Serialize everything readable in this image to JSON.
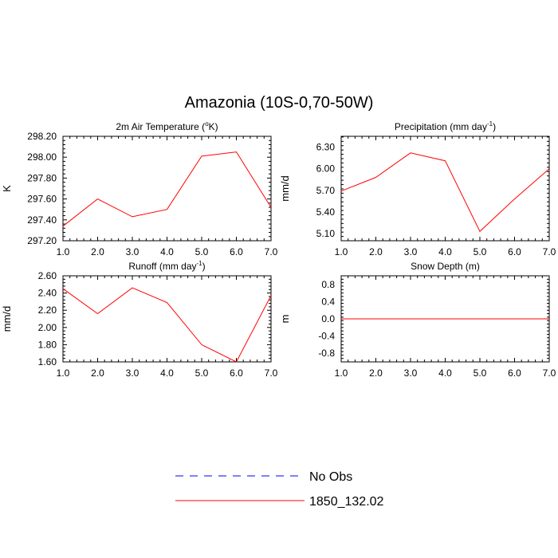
{
  "title": "Amazonia (10S-0,70-50W)",
  "colors": {
    "model": "#ff0000",
    "obs": "#0000ff",
    "axis": "#000000",
    "zero_line": "#000000"
  },
  "chart_data": [
    {
      "type": "line",
      "title": "2m Air Temperature (°K)",
      "title_parts": {
        "pre": "2m Air Temperature (",
        "sup": "o",
        "post": "K)"
      },
      "ylabel": "K",
      "x": [
        1,
        2,
        3,
        4,
        5,
        6,
        7
      ],
      "xlim": [
        1,
        7
      ],
      "ylim": [
        297.2,
        298.2
      ],
      "xticks": [
        "1.0",
        "2.0",
        "3.0",
        "4.0",
        "5.0",
        "6.0",
        "7.0"
      ],
      "yticks": [
        297.2,
        297.4,
        297.6,
        297.8,
        298.0,
        298.2
      ],
      "ytick_labels": [
        "297.20",
        "297.40",
        "297.60",
        "297.80",
        "298.00",
        "298.20"
      ],
      "series": [
        {
          "name": "1850_132.02",
          "values": [
            297.34,
            297.6,
            297.43,
            297.5,
            298.01,
            298.05,
            297.52
          ]
        }
      ]
    },
    {
      "type": "line",
      "title": "Precipitation (mm day-1)",
      "title_parts": {
        "pre": "Precipitation (mm day",
        "sup": "-1",
        "post": ")"
      },
      "ylabel": "mm/d",
      "x": [
        1,
        2,
        3,
        4,
        5,
        6,
        7
      ],
      "xlim": [
        1,
        7
      ],
      "ylim": [
        5.0,
        6.45
      ],
      "xticks": [
        "1.0",
        "2.0",
        "3.0",
        "4.0",
        "5.0",
        "6.0",
        "7.0"
      ],
      "yticks": [
        5.1,
        5.4,
        5.7,
        6.0,
        6.3
      ],
      "ytick_labels": [
        "5.10",
        "5.40",
        "5.70",
        "6.00",
        "6.30"
      ],
      "series": [
        {
          "name": "1850_132.02",
          "values": [
            5.69,
            5.88,
            6.22,
            6.11,
            5.13,
            5.58,
            6.0
          ]
        }
      ]
    },
    {
      "type": "line",
      "title": "Runoff (mm day-1)",
      "title_parts": {
        "pre": "Runoff (mm day",
        "sup": "-1",
        "post": ")"
      },
      "ylabel": "mm/d",
      "x": [
        1,
        2,
        3,
        4,
        5,
        6,
        7
      ],
      "xlim": [
        1,
        7
      ],
      "ylim": [
        1.6,
        2.6
      ],
      "xticks": [
        "1.0",
        "2.0",
        "3.0",
        "4.0",
        "5.0",
        "6.0",
        "7.0"
      ],
      "yticks": [
        1.6,
        1.8,
        2.0,
        2.2,
        2.4,
        2.6
      ],
      "ytick_labels": [
        "1.60",
        "1.80",
        "2.00",
        "2.20",
        "2.40",
        "2.60"
      ],
      "series": [
        {
          "name": "1850_132.02",
          "values": [
            2.45,
            2.16,
            2.46,
            2.29,
            1.8,
            1.6,
            2.37
          ]
        }
      ]
    },
    {
      "type": "line",
      "title": "Snow Depth (m)",
      "title_parts": {
        "pre": "Snow Depth (m)",
        "sup": "",
        "post": ""
      },
      "ylabel": "m",
      "x": [
        1,
        2,
        3,
        4,
        5,
        6,
        7
      ],
      "xlim": [
        1,
        7
      ],
      "ylim": [
        -1.0,
        1.0
      ],
      "xticks": [
        "1.0",
        "2.0",
        "3.0",
        "4.0",
        "5.0",
        "6.0",
        "7.0"
      ],
      "yticks": [
        -0.8,
        -0.4,
        0.0,
        0.4,
        0.8
      ],
      "ytick_labels": [
        "-0.8",
        "-0.4",
        "0.0",
        "0.4",
        "0.8"
      ],
      "series": [
        {
          "name": "1850_132.02",
          "values": [
            0,
            0,
            0,
            0,
            0,
            0,
            0
          ]
        }
      ]
    }
  ],
  "legend": [
    {
      "label": "No Obs",
      "style": "dashed",
      "color": "#0000ff"
    },
    {
      "label": "1850_132.02",
      "style": "solid",
      "color": "#ff0000"
    }
  ]
}
